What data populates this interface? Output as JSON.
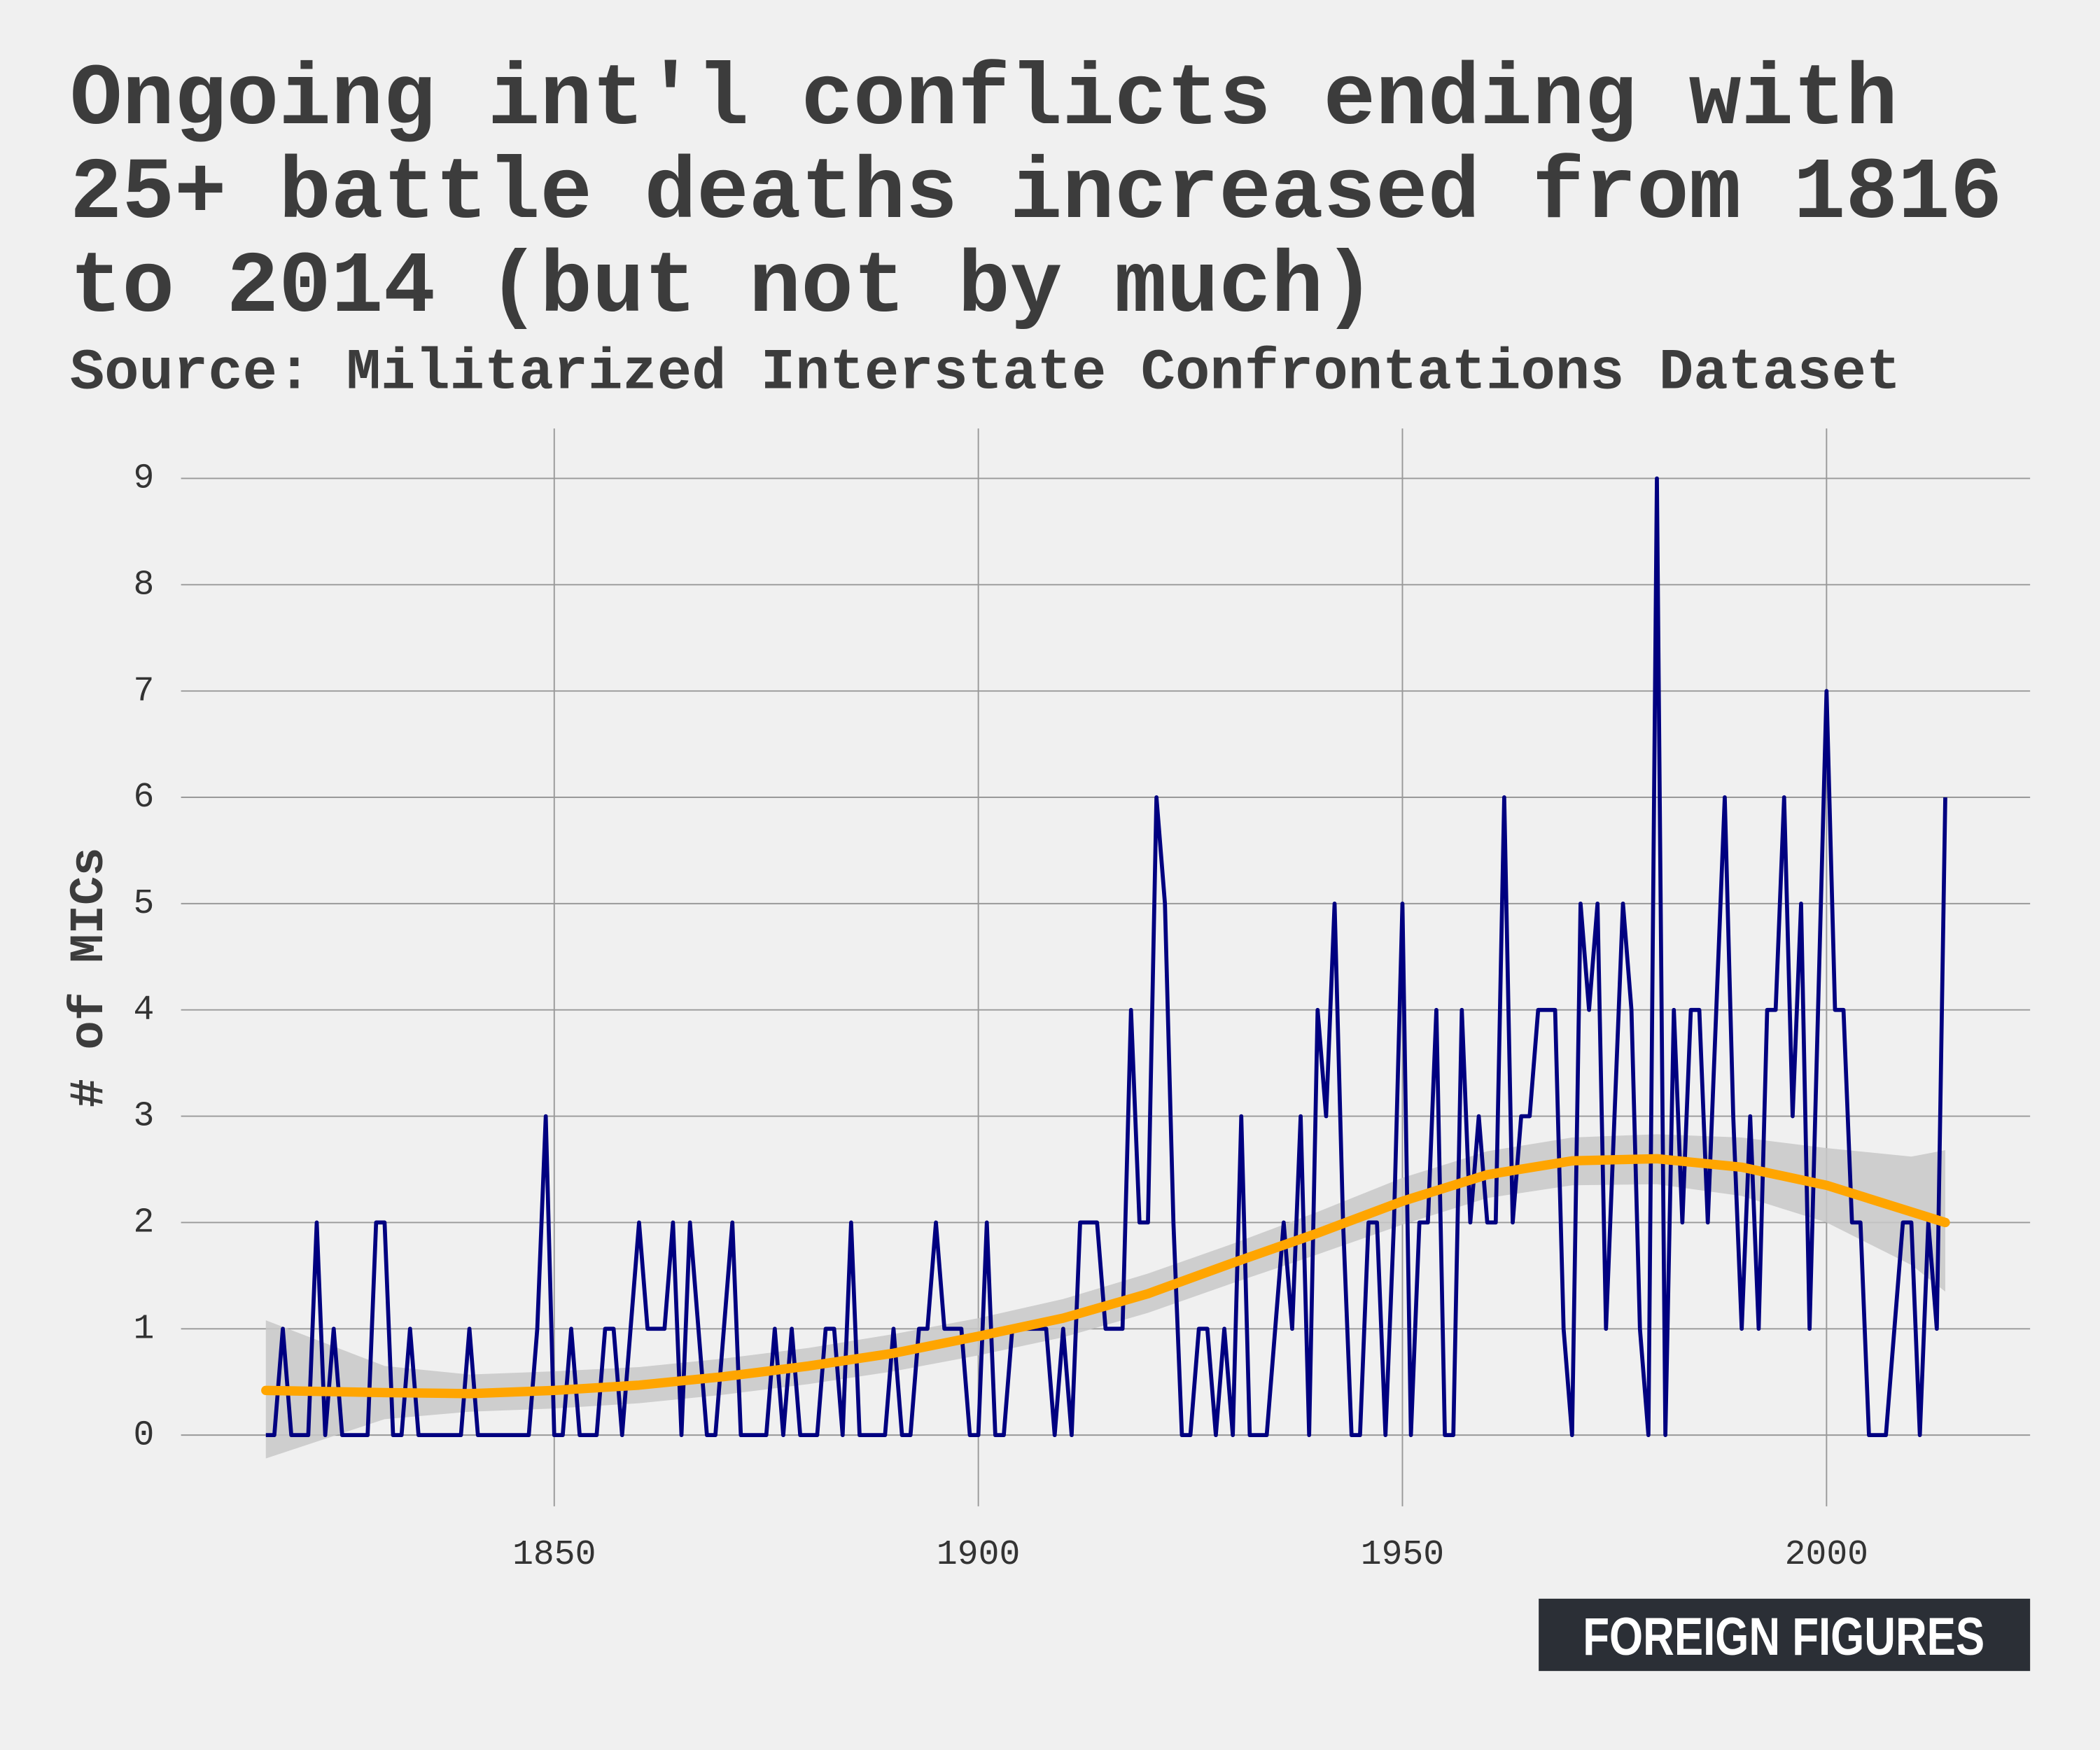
{
  "chart_data": {
    "type": "line",
    "title": [
      "Ongoing int'l conflicts ending with",
      "25+ battle deaths increased from 1816",
      "to 2014 (but not by much)"
    ],
    "subtitle": "Source: Militarized Interstate Confrontations Dataset",
    "y_label": "# of MICs",
    "brand": "FOREIGN FIGURES",
    "x_start": 1816,
    "series": [
      {
        "color": "#000080",
        "values": [
          0,
          0,
          1,
          0,
          0,
          0,
          2,
          0,
          1,
          0,
          0,
          0,
          0,
          2,
          2,
          0,
          0,
          1,
          0,
          0,
          0,
          0,
          0,
          0,
          1,
          0,
          0,
          0,
          0,
          0,
          0,
          0,
          1,
          3,
          0,
          0,
          1,
          0,
          0,
          0,
          1,
          1,
          0,
          1,
          2,
          1,
          1,
          1,
          2,
          0,
          2,
          1,
          0,
          0,
          1,
          2,
          0,
          0,
          0,
          0,
          1,
          0,
          1,
          0,
          0,
          0,
          1,
          1,
          0,
          2,
          0,
          0,
          0,
          0,
          1,
          0,
          0,
          1,
          1,
          2,
          1,
          1,
          1,
          0,
          0,
          2,
          0,
          0,
          1,
          1,
          1,
          1,
          1,
          0,
          1,
          0,
          2,
          2,
          2,
          1,
          1,
          1,
          4,
          2,
          2,
          6,
          5,
          2,
          0,
          0,
          1,
          1,
          0,
          1,
          0,
          3,
          0,
          0,
          0,
          1,
          2,
          1,
          3,
          0,
          4,
          3,
          5,
          2,
          0,
          0,
          2,
          2,
          0,
          2,
          5,
          0,
          2,
          2,
          4,
          0,
          0,
          4,
          2,
          3,
          2,
          2,
          6,
          2,
          3,
          3,
          4,
          4,
          4,
          1,
          0,
          5,
          4,
          5,
          1,
          3,
          5,
          4,
          1,
          0,
          9,
          0,
          4,
          2,
          4,
          4,
          2,
          4,
          6,
          3,
          1,
          3,
          1,
          4,
          4,
          6,
          3,
          5,
          1,
          4,
          7,
          4,
          4,
          2,
          2,
          0,
          0,
          0,
          1,
          2,
          2,
          0,
          2,
          1,
          6
        ]
      }
    ],
    "trend": {
      "color": "#ffa500",
      "band_color": "#c8c8c8",
      "x": [
        1816,
        1830,
        1840,
        1850,
        1860,
        1870,
        1880,
        1890,
        1900,
        1910,
        1920,
        1930,
        1940,
        1950,
        1960,
        1970,
        1980,
        1990,
        2000,
        2010,
        2014
      ],
      "values": [
        0.42,
        0.4,
        0.39,
        0.42,
        0.47,
        0.55,
        0.65,
        0.77,
        0.93,
        1.1,
        1.33,
        1.62,
        1.9,
        2.2,
        2.45,
        2.58,
        2.6,
        2.52,
        2.35,
        2.1,
        2.0
      ],
      "lower": [
        -0.22,
        0.15,
        0.22,
        0.25,
        0.3,
        0.38,
        0.48,
        0.6,
        0.75,
        0.92,
        1.15,
        1.43,
        1.7,
        1.98,
        2.23,
        2.35,
        2.36,
        2.25,
        2.0,
        1.6,
        1.35
      ],
      "upper": [
        1.08,
        0.65,
        0.57,
        0.6,
        0.64,
        0.72,
        0.82,
        0.95,
        1.1,
        1.28,
        1.52,
        1.8,
        2.1,
        2.42,
        2.67,
        2.8,
        2.83,
        2.8,
        2.7,
        2.62,
        2.68
      ]
    },
    "xlim": [
      1806,
      2024
    ],
    "xticks": [
      1850,
      1900,
      1950,
      2000
    ],
    "ylim": [
      -0.67,
      9.47
    ],
    "yticks": [
      0,
      1,
      2,
      3,
      4,
      5,
      6,
      7,
      8,
      9
    ],
    "grid": true
  }
}
